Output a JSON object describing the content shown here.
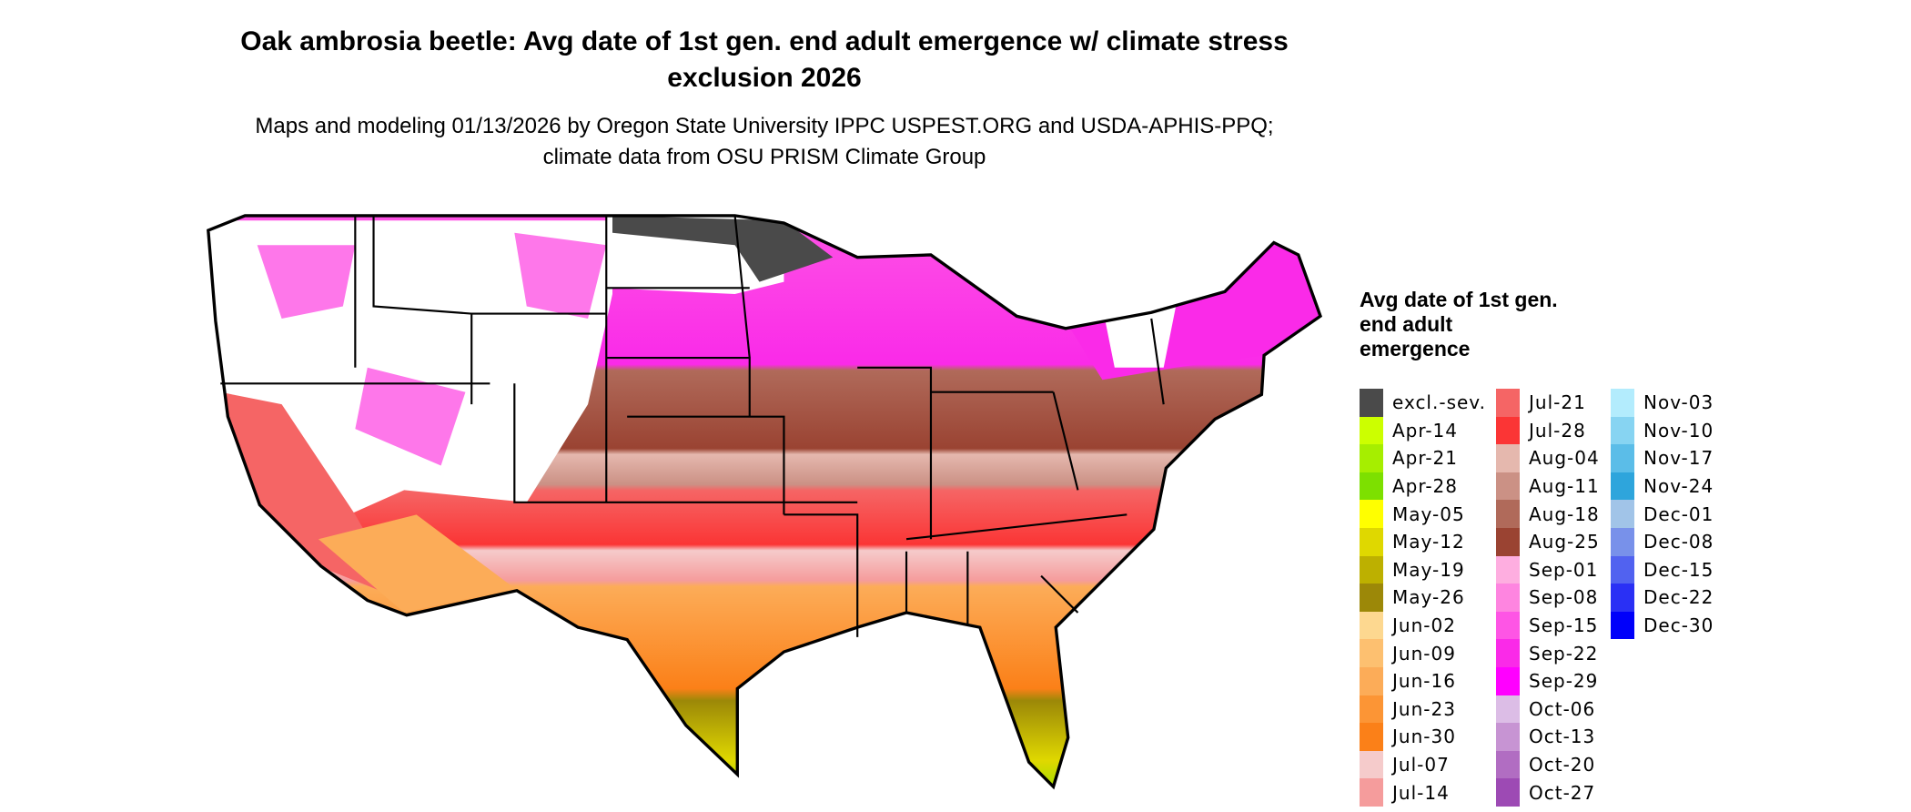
{
  "title": "Oak ambrosia beetle: Avg date of 1st gen. end adult emergence w/ climate stress exclusion 2026",
  "subtitle": "Maps and modeling 01/13/2026 by Oregon State University IPPC USPEST.ORG and USDA-APHIS-PPQ; climate data from OSU PRISM Climate Group",
  "legend": {
    "title": "Avg date of 1st gen. end adult emergence",
    "columns": [
      [
        {
          "label": "excl.-sev.",
          "color": "#4a4a4a"
        },
        {
          "label": "Apr-14",
          "color": "#ccff00"
        },
        {
          "label": "Apr-21",
          "color": "#a6ee00"
        },
        {
          "label": "Apr-28",
          "color": "#7de000"
        },
        {
          "label": "May-05",
          "color": "#ffff00"
        },
        {
          "label": "May-12",
          "color": "#dfd800"
        },
        {
          "label": "May-19",
          "color": "#bdb000"
        },
        {
          "label": "May-26",
          "color": "#9c8808"
        },
        {
          "label": "Jun-02",
          "color": "#fdd890"
        },
        {
          "label": "Jun-09",
          "color": "#fdc070"
        },
        {
          "label": "Jun-16",
          "color": "#fcac58"
        },
        {
          "label": "Jun-23",
          "color": "#fc9535"
        },
        {
          "label": "Jun-30",
          "color": "#fb8018"
        },
        {
          "label": "Jul-07",
          "color": "#f5cbcb"
        },
        {
          "label": "Jul-14",
          "color": "#f59c9c"
        }
      ],
      [
        {
          "label": "Jul-21",
          "color": "#f56565"
        },
        {
          "label": "Jul-28",
          "color": "#fb3535"
        },
        {
          "label": "Aug-04",
          "color": "#e5b8ae"
        },
        {
          "label": "Aug-11",
          "color": "#cb9185"
        },
        {
          "label": "Aug-18",
          "color": "#b06a5a"
        },
        {
          "label": "Aug-25",
          "color": "#9a4332"
        },
        {
          "label": "Sep-01",
          "color": "#feaee0"
        },
        {
          "label": "Sep-08",
          "color": "#fe85e0"
        },
        {
          "label": "Sep-15",
          "color": "#fe55e5"
        },
        {
          "label": "Sep-22",
          "color": "#fa2ae8"
        },
        {
          "label": "Sep-29",
          "color": "#ff00ff"
        },
        {
          "label": "Oct-06",
          "color": "#dcbde6"
        },
        {
          "label": "Oct-13",
          "color": "#c794d3"
        },
        {
          "label": "Oct-20",
          "color": "#b16dc2"
        },
        {
          "label": "Oct-27",
          "color": "#9d4ab4"
        }
      ],
      [
        {
          "label": "Nov-03",
          "color": "#b3ecfd"
        },
        {
          "label": "Nov-10",
          "color": "#87d4f2"
        },
        {
          "label": "Nov-17",
          "color": "#5bbde8"
        },
        {
          "label": "Nov-24",
          "color": "#2ea5dc"
        },
        {
          "label": "Dec-01",
          "color": "#a1c4e8"
        },
        {
          "label": "Dec-08",
          "color": "#7891ea"
        },
        {
          "label": "Dec-15",
          "color": "#5162f0"
        },
        {
          "label": "Dec-22",
          "color": "#2a30f5"
        },
        {
          "label": "Dec-30",
          "color": "#0000fa"
        }
      ]
    ]
  }
}
